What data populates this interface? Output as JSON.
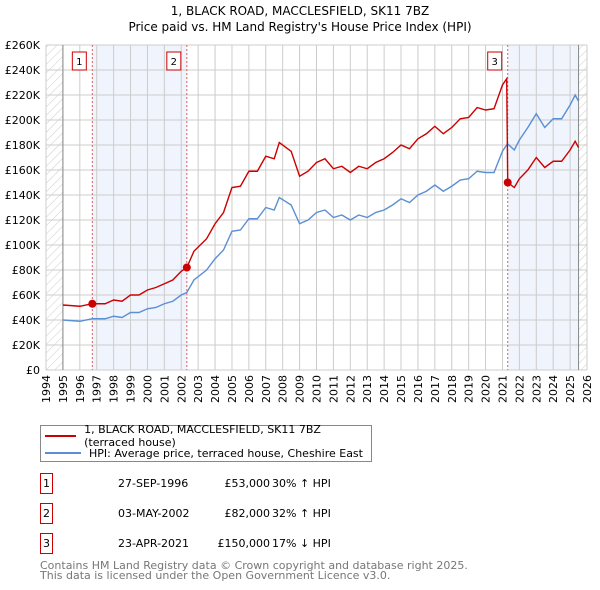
{
  "chart_data": {
    "type": "line",
    "title": "1, BLACK ROAD, MACCLESFIELD, SK11 7BZ",
    "subtitle": "Price paid vs. HM Land Registry's House Price Index (HPI)",
    "xlim": [
      1994,
      2026
    ],
    "ylim": [
      0,
      260000
    ],
    "x_ticks": [
      "1994",
      "1995",
      "1996",
      "1997",
      "1998",
      "1999",
      "2000",
      "2001",
      "2002",
      "2003",
      "2004",
      "2005",
      "2006",
      "2007",
      "2008",
      "2009",
      "2010",
      "2011",
      "2012",
      "2013",
      "2014",
      "2015",
      "2016",
      "2017",
      "2018",
      "2019",
      "2020",
      "2021",
      "2022",
      "2023",
      "2024",
      "2025",
      "2026"
    ],
    "y_ticks": [
      "£0",
      "£20K",
      "£40K",
      "£60K",
      "£80K",
      "£100K",
      "£120K",
      "£140K",
      "£160K",
      "£180K",
      "£200K",
      "£220K",
      "£240K",
      "£260K"
    ],
    "grid": true,
    "series": [
      {
        "name": "1, BLACK ROAD, MACCLESFIELD, SK11 7BZ (terraced house)",
        "color": "#cc0000",
        "x": [
          1995,
          1996,
          1996.75,
          1997.5,
          1998,
          1998.5,
          1999,
          1999.5,
          2000,
          2000.5,
          2001,
          2001.5,
          2002,
          2002.33,
          2002.75,
          2003.5,
          2004,
          2004.5,
          2005,
          2005.5,
          2006,
          2006.5,
          2007,
          2007.5,
          2007.8,
          2008.5,
          2009,
          2009.5,
          2010,
          2010.5,
          2011,
          2011.5,
          2012,
          2012.5,
          2013,
          2013.5,
          2014,
          2014.5,
          2015,
          2015.5,
          2016,
          2016.5,
          2017,
          2017.5,
          2018,
          2018.5,
          2019,
          2019.5,
          2020,
          2020.5,
          2021,
          2021.25,
          2021.31,
          2021.7,
          2022,
          2022.5,
          2023,
          2023.5,
          2024,
          2024.5,
          2025,
          2025.3,
          2025.5
        ],
        "y": [
          52,
          51,
          53,
          53,
          56,
          55,
          60,
          60,
          64,
          66,
          69,
          72,
          79,
          82,
          95,
          105,
          117,
          126,
          146,
          147,
          159,
          159,
          171,
          169,
          182,
          175,
          155,
          159,
          166,
          169,
          161,
          163,
          158,
          163,
          161,
          166,
          169,
          174,
          180,
          177,
          185,
          189,
          195,
          189,
          194,
          201,
          202,
          210,
          208,
          209,
          228,
          233,
          150,
          146,
          153,
          160,
          170,
          162,
          167,
          167,
          176,
          183,
          178
        ]
      },
      {
        "name": "HPI: Average price, terraced house, Cheshire East",
        "color": "#5b8fd4",
        "x": [
          1995,
          1996,
          1996.75,
          1997.5,
          1998,
          1998.5,
          1999,
          1999.5,
          2000,
          2000.5,
          2001,
          2001.5,
          2002,
          2002.33,
          2002.75,
          2003.5,
          2004,
          2004.5,
          2005,
          2005.5,
          2006,
          2006.5,
          2007,
          2007.5,
          2007.8,
          2008.5,
          2009,
          2009.5,
          2010,
          2010.5,
          2011,
          2011.5,
          2012,
          2012.5,
          2013,
          2013.5,
          2014,
          2014.5,
          2015,
          2015.5,
          2016,
          2016.5,
          2017,
          2017.5,
          2018,
          2018.5,
          2019,
          2019.5,
          2020,
          2020.5,
          2021,
          2021.3,
          2021.7,
          2022,
          2022.5,
          2023,
          2023.5,
          2024,
          2024.5,
          2025,
          2025.3,
          2025.5
        ],
        "y": [
          40,
          39,
          41,
          41,
          43,
          42,
          46,
          46,
          49,
          50,
          53,
          55,
          60,
          62,
          72,
          80,
          89,
          96,
          111,
          112,
          121,
          121,
          130,
          128,
          138,
          132,
          117,
          120,
          126,
          128,
          122,
          124,
          120,
          124,
          122,
          126,
          128,
          132,
          137,
          134,
          140,
          143,
          148,
          143,
          147,
          152,
          153,
          159,
          158,
          158,
          175,
          181,
          176,
          184,
          194,
          205,
          194,
          201,
          201,
          212,
          220,
          215
        ]
      }
    ],
    "y_unit": "thousands GBP",
    "sales": [
      {
        "label": "1",
        "x": 1996.74,
        "y": 53,
        "date": "27-SEP-1996",
        "price": "£53,000",
        "hpi": "30% ↑ HPI"
      },
      {
        "label": "2",
        "x": 2002.33,
        "y": 82,
        "date": "03-MAY-2002",
        "price": "£82,000",
        "hpi": "32% ↑ HPI"
      },
      {
        "label": "3",
        "x": 2021.31,
        "y": 150,
        "date": "23-APR-2021",
        "price": "£150,000",
        "hpi": "17% ↓ HPI"
      }
    ],
    "legend_placement": "below"
  },
  "footer": {
    "line1": "Contains HM Land Registry data © Crown copyright and database right 2025.",
    "line2": "This data is licensed under the Open Government Licence v3.0."
  }
}
